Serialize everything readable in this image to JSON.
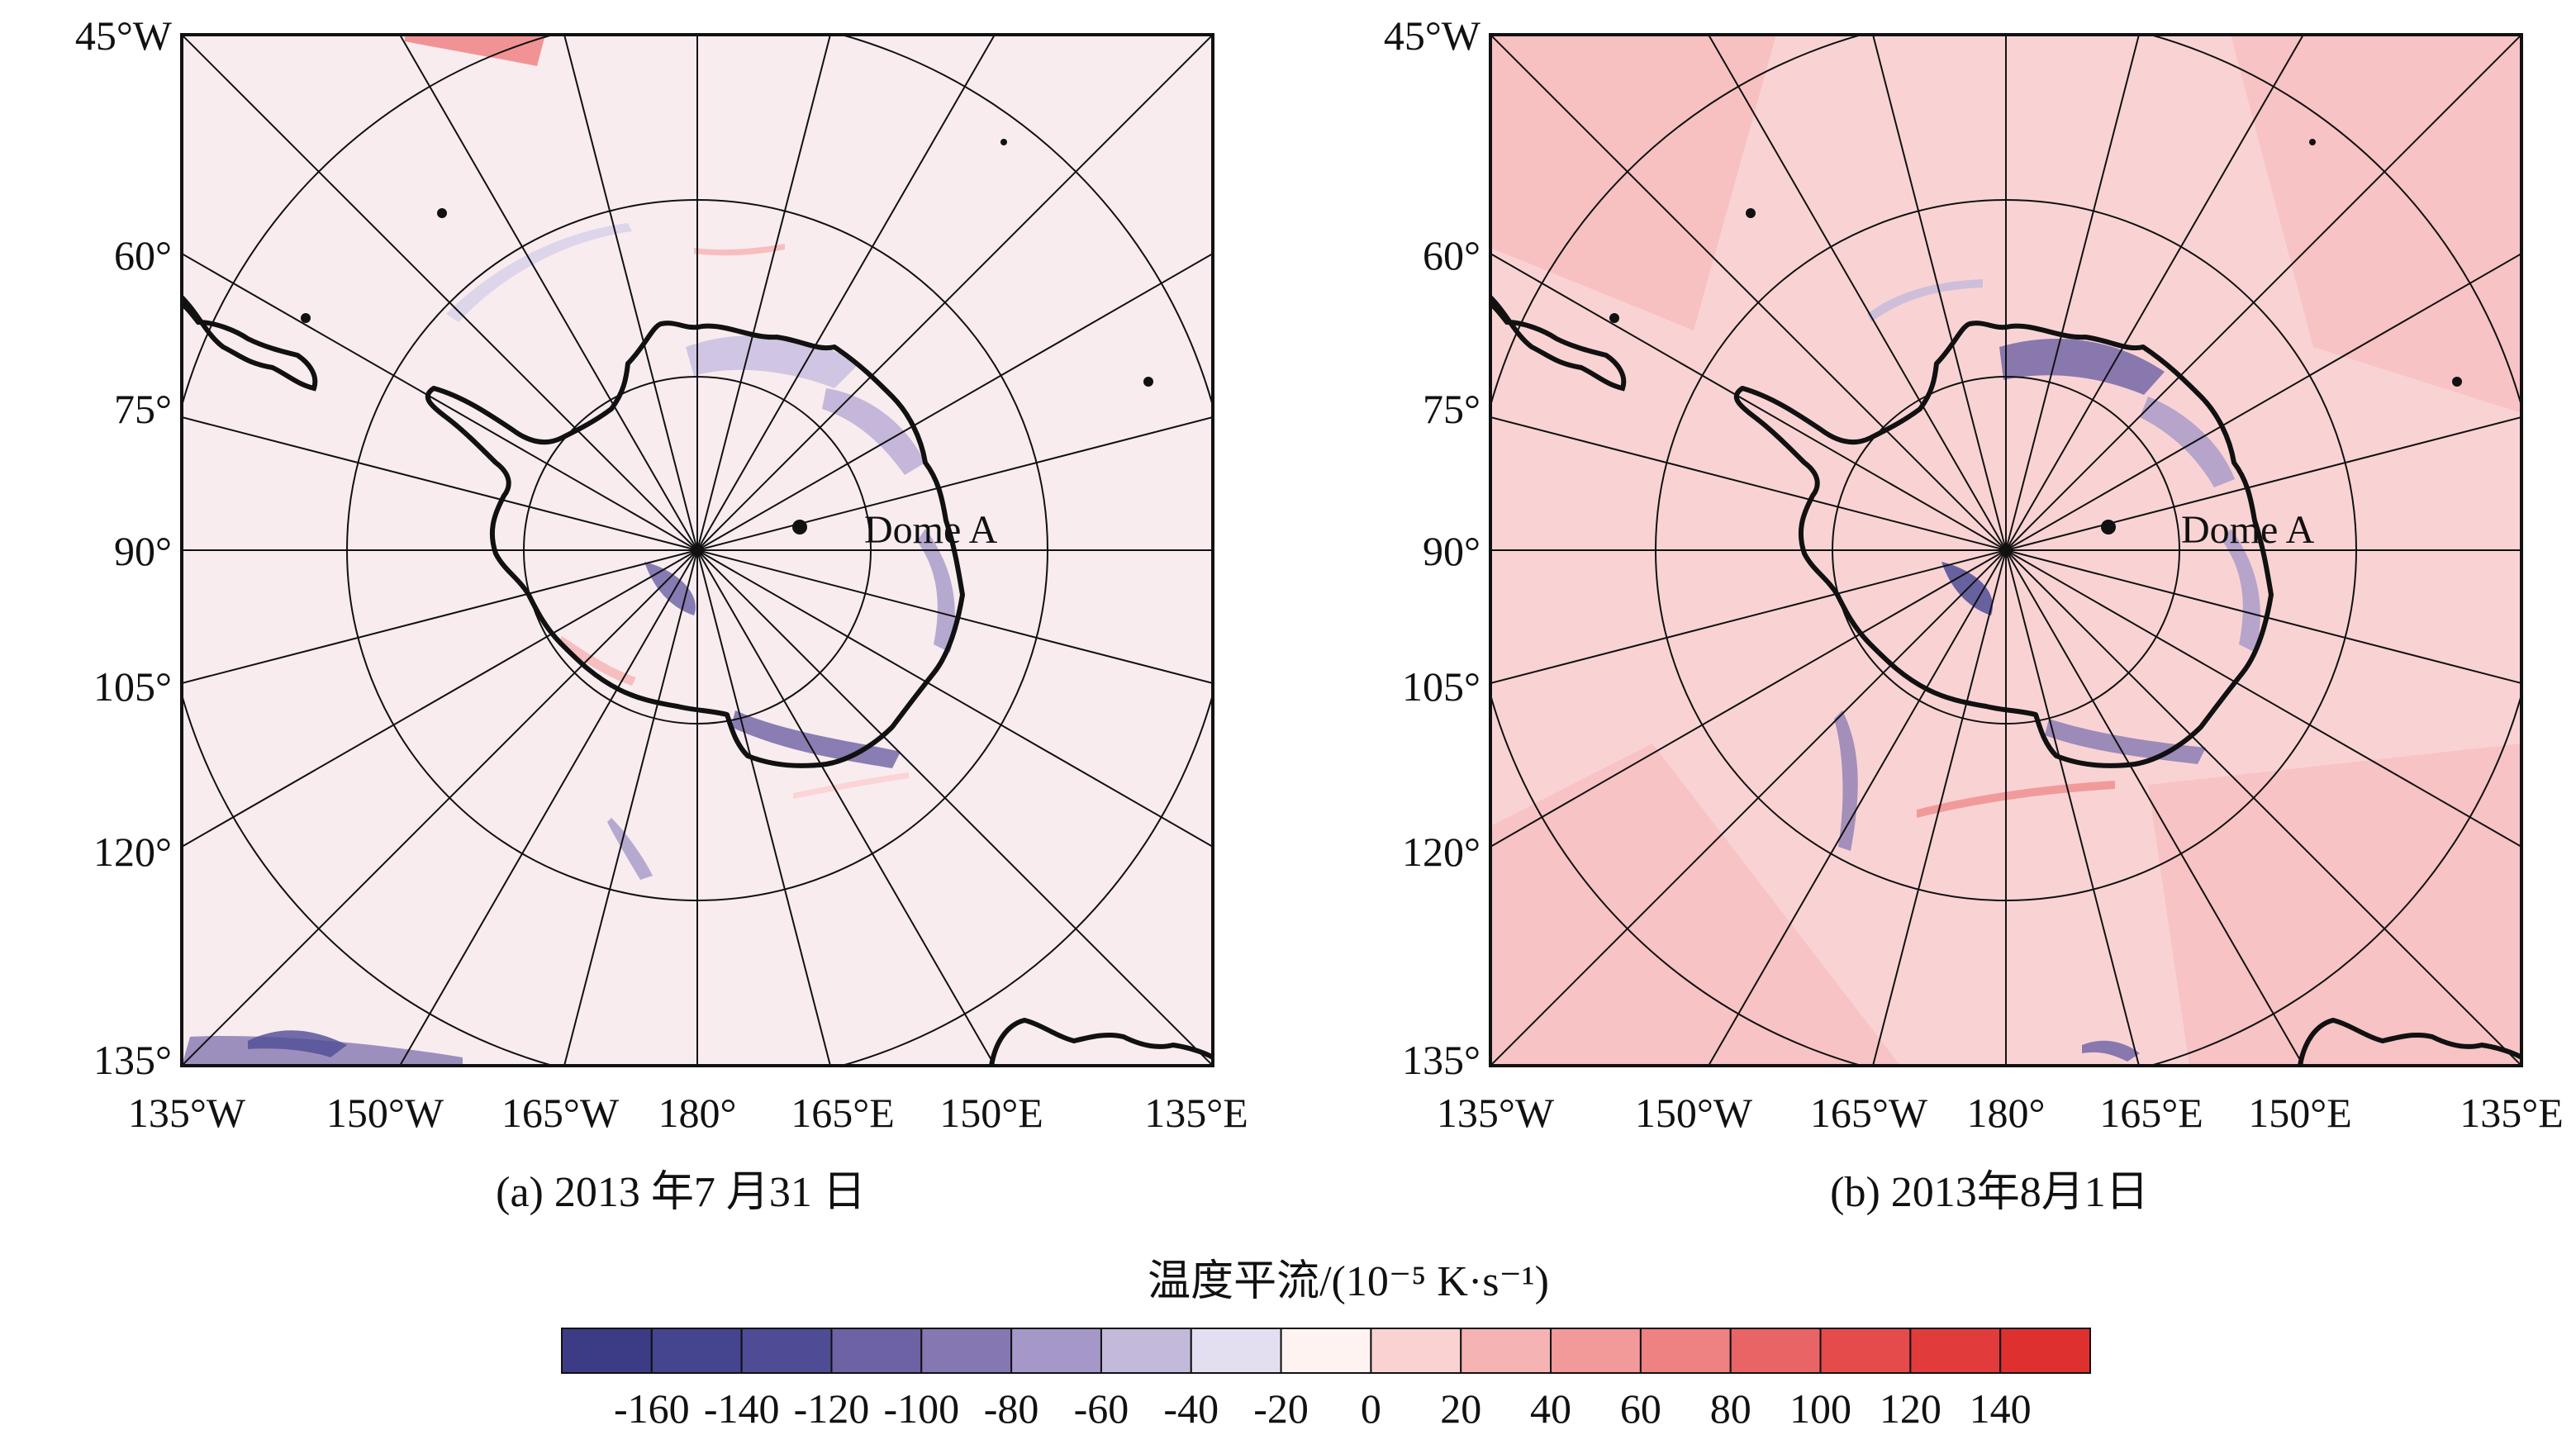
{
  "panels": [
    {
      "id": "a",
      "caption": "(a) 2013 年7 月31 日",
      "station_label": "Dome A",
      "field_tint": "#f8ecef",
      "left_labels": [
        "45°W",
        "60°",
        "75°",
        "90°",
        "105°",
        "120°",
        "135°"
      ],
      "bottom_labels": [
        "135°W",
        "150°W",
        "165°W",
        "180°",
        "165°E",
        "150°E",
        "135°E"
      ]
    },
    {
      "id": "b",
      "caption": "(b) 2013年8月1日",
      "station_label": "Dome A",
      "field_tint": "#f9d3d4",
      "left_labels": [
        "45°W",
        "60°",
        "75°",
        "90°",
        "105°",
        "120°",
        "135°"
      ],
      "bottom_labels": [
        "135°W",
        "150°W",
        "165°W",
        "180°",
        "165°E",
        "150°E",
        "135°E"
      ]
    }
  ],
  "colorbar": {
    "title": "温度平流/(10⁻⁵ K·s⁻¹)",
    "tick_labels": [
      "-160",
      "-140",
      "-120",
      "-100",
      "-80",
      "-60",
      "-40",
      "-20",
      "0",
      "20",
      "40",
      "60",
      "80",
      "100",
      "120",
      "140"
    ],
    "colors": [
      "#3b3b86",
      "#45448f",
      "#4f4c96",
      "#6d62a4",
      "#8578b2",
      "#a598c8",
      "#c3b9da",
      "#e4dff0",
      "#fff3f2",
      "#fbd2d2",
      "#f6b3b3",
      "#f29a9a",
      "#ee8181",
      "#e96464",
      "#e54b4b",
      "#e23b3b",
      "#df3030"
    ]
  }
}
